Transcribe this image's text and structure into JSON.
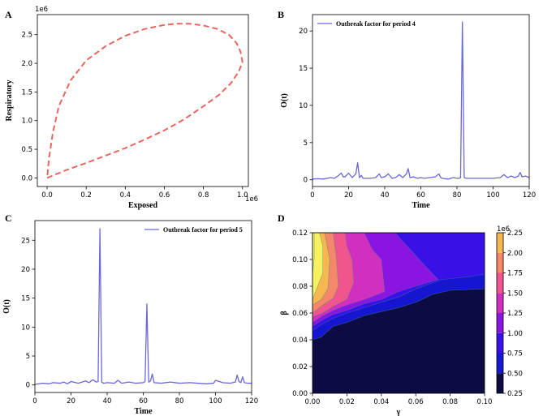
{
  "panels": {
    "a": {
      "letter": "A"
    },
    "b": {
      "letter": "B"
    },
    "c": {
      "letter": "C"
    },
    "d": {
      "letter": "D"
    }
  },
  "chart_data": [
    {
      "type": "line",
      "panel": "A",
      "xlabel": "Exposed",
      "ylabel": "Respiratory",
      "x_offset_label": "1e6",
      "y_offset_label": "1e6",
      "xlim": [
        -0.05,
        1.03
      ],
      "ylim": [
        -0.15,
        2.85
      ],
      "xticks": [
        0.0,
        0.2,
        0.4,
        0.6,
        0.8,
        1.0
      ],
      "xtick_labels": [
        "0.0",
        "0.2",
        "0.4",
        "0.6",
        "0.8",
        "1.0"
      ],
      "yticks": [
        0.0,
        0.5,
        1.0,
        1.5,
        2.0,
        2.5
      ],
      "ytick_labels": [
        "0.0",
        "0.5",
        "1.0",
        "1.5",
        "2.0",
        "2.5"
      ],
      "line_style": "dashed",
      "color": "#e8665e",
      "series": [
        {
          "x": [
            0.0,
            0.05,
            0.1,
            0.2,
            0.3,
            0.4,
            0.5,
            0.6,
            0.7,
            0.8,
            0.88,
            0.94,
            0.98,
            1.0,
            0.99,
            0.97,
            0.93,
            0.87,
            0.8,
            0.73,
            0.66,
            0.6,
            0.5,
            0.4,
            0.3,
            0.2,
            0.12,
            0.06,
            0.03,
            0.01,
            0.0
          ],
          "y": [
            0.0,
            0.07,
            0.14,
            0.26,
            0.39,
            0.52,
            0.67,
            0.83,
            1.02,
            1.25,
            1.45,
            1.65,
            1.85,
            2.02,
            2.2,
            2.35,
            2.5,
            2.6,
            2.66,
            2.69,
            2.69,
            2.67,
            2.6,
            2.48,
            2.3,
            2.05,
            1.7,
            1.25,
            0.8,
            0.35,
            0.0
          ]
        }
      ]
    },
    {
      "type": "line",
      "panel": "B",
      "xlabel": "Time",
      "ylabel": "O(t)",
      "xlim": [
        0,
        120
      ],
      "ylim": [
        -0.9,
        22.2
      ],
      "xticks": [
        0,
        20,
        40,
        60,
        80,
        100,
        120
      ],
      "xtick_labels": [
        "0",
        "20",
        "40",
        "60",
        "80",
        "100",
        "120"
      ],
      "yticks": [
        0,
        5,
        10,
        15,
        20
      ],
      "ytick_labels": [
        "0",
        "5",
        "10",
        "15",
        "20"
      ],
      "color": "#6a67d8",
      "series": [
        {
          "name": "Outbreak factor for period 4",
          "x": [
            0,
            3,
            6,
            10,
            12,
            14,
            16,
            17,
            18,
            20,
            22,
            24,
            25,
            26,
            27,
            28,
            30,
            32,
            35,
            37,
            38,
            40,
            42,
            44,
            46,
            48,
            50,
            52,
            53,
            54,
            56,
            58,
            60,
            62,
            65,
            68,
            70,
            71,
            72,
            75,
            78,
            80,
            81,
            82,
            83,
            84,
            85,
            86,
            90,
            95,
            100,
            104,
            106,
            108,
            110,
            112,
            114,
            115,
            116,
            118,
            120
          ],
          "y": [
            0.1,
            0.15,
            0.1,
            0.3,
            0.2,
            0.5,
            0.9,
            0.4,
            0.4,
            0.9,
            0.3,
            0.8,
            2.3,
            0.3,
            0.6,
            0.2,
            0.2,
            0.2,
            0.3,
            0.8,
            0.3,
            0.4,
            0.8,
            0.2,
            0.3,
            0.7,
            0.3,
            0.8,
            1.5,
            0.3,
            0.4,
            0.2,
            0.3,
            0.2,
            0.3,
            0.4,
            0.8,
            0.3,
            0.2,
            0.1,
            0.3,
            0.2,
            0.2,
            0.3,
            21.2,
            0.3,
            0.2,
            0.2,
            0.2,
            0.2,
            0.2,
            0.3,
            0.7,
            0.3,
            0.5,
            0.3,
            0.5,
            1.0,
            0.4,
            0.5,
            0.3
          ]
        }
      ]
    },
    {
      "type": "line",
      "panel": "C",
      "xlabel": "Time",
      "ylabel": "O(t)",
      "xlim": [
        0,
        120
      ],
      "ylim": [
        -1.3,
        28.4
      ],
      "xticks": [
        0,
        20,
        40,
        60,
        80,
        100,
        120
      ],
      "xtick_labels": [
        "0",
        "20",
        "40",
        "60",
        "80",
        "100",
        "120"
      ],
      "yticks": [
        0,
        5,
        10,
        15,
        20,
        25
      ],
      "ytick_labels": [
        "0",
        "5",
        "10",
        "15",
        "20",
        "25"
      ],
      "color": "#6a67d8",
      "series": [
        {
          "name": "Outbreak factor for period 5",
          "x": [
            0,
            4,
            8,
            10,
            14,
            16,
            18,
            20,
            24,
            28,
            30,
            32,
            34,
            35,
            36,
            37,
            38,
            40,
            44,
            46,
            48,
            52,
            56,
            60,
            61,
            62,
            63,
            64,
            65,
            66,
            70,
            75,
            80,
            86,
            90,
            95,
            99,
            100,
            104,
            108,
            111,
            112,
            113,
            114,
            115,
            116,
            118,
            120
          ],
          "y": [
            0.1,
            0.3,
            0.2,
            0.4,
            0.3,
            0.5,
            0.2,
            0.6,
            0.3,
            0.7,
            0.4,
            0.9,
            0.5,
            0.6,
            27.0,
            0.5,
            0.3,
            0.4,
            0.3,
            0.8,
            0.3,
            0.5,
            0.3,
            0.4,
            0.6,
            14.0,
            0.5,
            0.7,
            1.9,
            0.4,
            0.3,
            0.5,
            0.3,
            0.4,
            0.3,
            0.2,
            0.3,
            0.8,
            0.4,
            0.3,
            0.5,
            1.7,
            0.6,
            0.4,
            1.4,
            0.4,
            0.3,
            0.3
          ]
        }
      ]
    },
    {
      "type": "heatmap",
      "panel": "D",
      "xlabel": "γ",
      "ylabel": "β",
      "xlim": [
        0,
        0.1
      ],
      "ylim": [
        0,
        0.12
      ],
      "xticks": [
        0,
        0.02,
        0.04,
        0.06,
        0.08,
        0.1
      ],
      "xtick_labels": [
        "0.00",
        "0.02",
        "0.04",
        "0.06",
        "0.08",
        "0.10"
      ],
      "yticks": [
        0,
        0.02,
        0.04,
        0.06,
        0.08,
        0.1,
        0.12
      ],
      "ytick_labels": [
        "0.00",
        "0.02",
        "0.04",
        "0.06",
        "0.08",
        "0.10",
        "0.12"
      ],
      "colorbar": {
        "offset_label": "1e6",
        "ticks": [
          0.25,
          0.5,
          0.75,
          1.0,
          1.25,
          1.5,
          1.75,
          2.0,
          2.25
        ],
        "tick_labels": [
          "0.25",
          "0.50",
          "0.75",
          "1.00",
          "1.25",
          "1.50",
          "1.75",
          "2.00",
          "2.25"
        ],
        "colors": [
          "#0c0b44",
          "#1616d0",
          "#3a10e8",
          "#8a15e0",
          "#d02fc0",
          "#f0558e",
          "#f5876a",
          "#f7b750",
          "#f8f060"
        ]
      },
      "contours": [
        {
          "level": 0.25,
          "boundary": [
            [
              0.0,
              0.04
            ],
            [
              0.005,
              0.042
            ],
            [
              0.012,
              0.05
            ],
            [
              0.02,
              0.053
            ],
            [
              0.03,
              0.058
            ],
            [
              0.04,
              0.061
            ],
            [
              0.05,
              0.064
            ],
            [
              0.06,
              0.068
            ],
            [
              0.07,
              0.074
            ],
            [
              0.08,
              0.077
            ],
            [
              0.1,
              0.078
            ]
          ]
        },
        {
          "level": 0.5,
          "boundary": [
            [
              0.0,
              0.047
            ],
            [
              0.006,
              0.052
            ],
            [
              0.012,
              0.056
            ],
            [
              0.02,
              0.06
            ],
            [
              0.03,
              0.064
            ],
            [
              0.04,
              0.068
            ],
            [
              0.05,
              0.072
            ],
            [
              0.06,
              0.078
            ],
            [
              0.075,
              0.085
            ],
            [
              0.09,
              0.087
            ],
            [
              0.1,
              0.089
            ]
          ]
        },
        {
          "level": 0.75,
          "boundary": [
            [
              0.0,
              0.05
            ],
            [
              0.006,
              0.055
            ],
            [
              0.012,
              0.059
            ],
            [
              0.02,
              0.062
            ],
            [
              0.03,
              0.067
            ],
            [
              0.04,
              0.07
            ],
            [
              0.05,
              0.076
            ],
            [
              0.06,
              0.08
            ],
            [
              0.073,
              0.085
            ],
            [
              0.062,
              0.1
            ],
            [
              0.048,
              0.12
            ]
          ]
        },
        {
          "level": 1.0,
          "boundary": [
            [
              0.0,
              0.053
            ],
            [
              0.006,
              0.058
            ],
            [
              0.012,
              0.062
            ],
            [
              0.02,
              0.066
            ],
            [
              0.03,
              0.07
            ],
            [
              0.042,
              0.076
            ],
            [
              0.04,
              0.1
            ],
            [
              0.035,
              0.107
            ],
            [
              0.03,
              0.12
            ]
          ]
        },
        {
          "level": 1.25,
          "boundary": [
            [
              0.0,
              0.057
            ],
            [
              0.006,
              0.06
            ],
            [
              0.012,
              0.065
            ],
            [
              0.02,
              0.07
            ],
            [
              0.024,
              0.083
            ],
            [
              0.023,
              0.1
            ],
            [
              0.02,
              0.11
            ],
            [
              0.019,
              0.12
            ]
          ]
        },
        {
          "level": 1.5,
          "boundary": [
            [
              0.0,
              0.06
            ],
            [
              0.006,
              0.066
            ],
            [
              0.012,
              0.071
            ],
            [
              0.015,
              0.08
            ],
            [
              0.014,
              0.1
            ],
            [
              0.012,
              0.12
            ]
          ]
        },
        {
          "level": 1.75,
          "boundary": [
            [
              0.0,
              0.066
            ],
            [
              0.005,
              0.07
            ],
            [
              0.009,
              0.078
            ],
            [
              0.01,
              0.1
            ],
            [
              0.007,
              0.12
            ]
          ]
        },
        {
          "level": 2.0,
          "boundary": [
            [
              0.0,
              0.07
            ],
            [
              0.003,
              0.08
            ],
            [
              0.006,
              0.09
            ],
            [
              0.006,
              0.11
            ],
            [
              0.004,
              0.12
            ]
          ]
        },
        {
          "level": 2.25,
          "boundary": [
            [
              0.0,
              0.09
            ],
            [
              0.001,
              0.1
            ],
            [
              0.001,
              0.12
            ]
          ]
        }
      ]
    }
  ]
}
